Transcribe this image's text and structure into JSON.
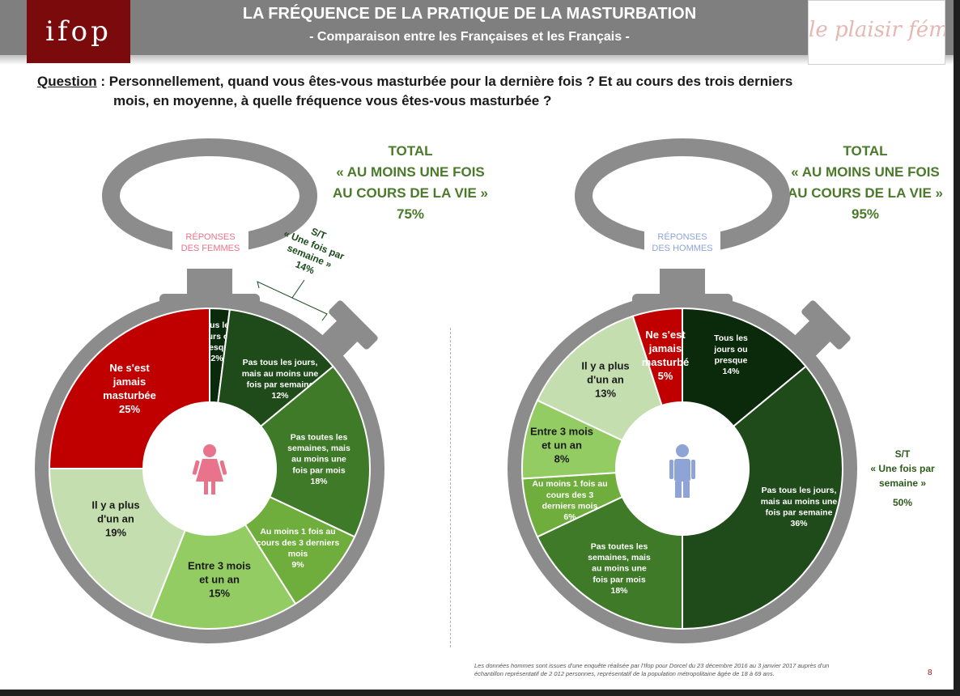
{
  "header": {
    "title": "LA FRÉQUENCE DE LA PRATIQUE DE LA MASTURBATION",
    "subtitle": "- Comparaison entre les Françaises et les Français -",
    "logo_left": "ifop",
    "logo_right": "le plaisir féminin"
  },
  "question": {
    "label": "Question",
    "line1": " : Personnellement, quand vous êtes-vous masturbée pour la dernière fois ? Et au cours des trois derniers",
    "line2": "mois, en moyenne, à quelle fréquence vous êtes-vous masturbée ?"
  },
  "women": {
    "badge_line1": "RÉPONSES",
    "badge_line2": "DES FEMMES",
    "total_line1": "TOTAL",
    "total_line2": "« AU MOINS UNE FOIS",
    "total_line3": "AU COURS DE LA VIE »",
    "total_value": "75%",
    "subtotal_line1": "S/T",
    "subtotal_line2": "« Une fois par",
    "subtotal_line3": "semaine »",
    "subtotal_value": "14%"
  },
  "men": {
    "badge_line1": "RÉPONSES",
    "badge_line2": "DES HOMMES",
    "total_line1": "TOTAL",
    "total_line2": "« AU MOINS UNE FOIS",
    "total_line3": "AU COURS DE LA VIE »",
    "total_value": "95%",
    "subtotal_line1": "S/T",
    "subtotal_line2": "« Une fois par",
    "subtotal_line3": "semaine »",
    "subtotal_value": "50%"
  },
  "chart_data": [
    {
      "type": "pie",
      "title": "RÉPONSES DES FEMMES",
      "slices": [
        {
          "label": "Tous les jours ou presque",
          "value": 2,
          "color": "#0b2a0b"
        },
        {
          "label": "Pas tous les jours, mais au moins une fois par semaine",
          "value": 12,
          "color": "#1f4a1a"
        },
        {
          "label": "Pas toutes les semaines, mais au moins une fois par mois",
          "value": 18,
          "color": "#3e7a28"
        },
        {
          "label": "Au moins 1 fois au cours des 3 derniers mois",
          "value": 9,
          "color": "#6fae3c"
        },
        {
          "label": "Entre 3 mois et un an",
          "value": 15,
          "color": "#92cc62"
        },
        {
          "label": "Il y a plus d'un an",
          "value": 19,
          "color": "#c4deb0"
        },
        {
          "label": "Ne s'est jamais masturbée",
          "value": 25,
          "color": "#c00000"
        }
      ]
    },
    {
      "type": "pie",
      "title": "RÉPONSES DES HOMMES",
      "slices": [
        {
          "label": "Tous les jours ou presque",
          "value": 14,
          "color": "#0b2a0b"
        },
        {
          "label": "Pas tous les jours, mais au moins une fois par semaine",
          "value": 36,
          "color": "#1f4a1a"
        },
        {
          "label": "Pas toutes les semaines, mais au moins une fois par mois",
          "value": 18,
          "color": "#3e7a28"
        },
        {
          "label": "Au moins 1 fois au cours des 3 derniers mois",
          "value": 6,
          "color": "#6fae3c"
        },
        {
          "label": "Entre 3 mois et un an",
          "value": 8,
          "color": "#92cc62"
        },
        {
          "label": "Il y a plus d'un an",
          "value": 13,
          "color": "#c4deb0"
        },
        {
          "label": "Ne s'est jamais masturbé",
          "value": 5,
          "color": "#c00000"
        }
      ]
    }
  ],
  "labels_women": [
    {
      "lines": [
        "Tous les",
        "jours ou",
        "presque",
        "2%"
      ]
    },
    {
      "lines": [
        "Pas tous les jours,",
        "mais au moins une",
        "fois par semaine",
        "12%"
      ]
    },
    {
      "lines": [
        "Pas toutes les",
        "semaines, mais",
        "au moins une",
        "fois par mois",
        "18%"
      ]
    },
    {
      "lines": [
        "Au moins 1 fois au",
        "cours des 3 derniers",
        "mois",
        "9%"
      ]
    },
    {
      "lines": [
        "Entre 3 mois",
        "et un an",
        "15%"
      ]
    },
    {
      "lines": [
        "Il y a plus",
        "d'un an",
        "19%"
      ]
    },
    {
      "lines": [
        "Ne s'est",
        "jamais",
        "masturbée",
        "25%"
      ]
    }
  ],
  "labels_men": [
    {
      "lines": [
        "Tous les",
        "jours ou",
        "presque",
        "14%"
      ]
    },
    {
      "lines": [
        "Pas tous les jours,",
        "mais au moins une",
        "fois par semaine",
        "36%"
      ]
    },
    {
      "lines": [
        "Pas toutes les",
        "semaines, mais",
        "au moins une",
        "fois par mois",
        "18%"
      ]
    },
    {
      "lines": [
        "Au moins 1 fois au",
        "cours des 3",
        "derniers mois",
        "6%"
      ]
    },
    {
      "lines": [
        "Entre 3 mois",
        "et un an",
        "8%"
      ]
    },
    {
      "lines": [
        "Il y a plus",
        "d'un an",
        "13%"
      ]
    },
    {
      "lines": [
        "Ne s'est",
        "jamais",
        "masturbé",
        "5%"
      ]
    }
  ],
  "footnote": {
    "line1": "Les données hommes sont issues d'une enquête réalisée par l'Ifop pour Dorcel du 23 décembre 2016 au 3 janvier 2017 auprès d'un",
    "line2": "échantillon représentatif de 2 012 personnes, représentatif de la population métropolitaine âgée de 18 à 69 ans."
  },
  "page_number": "8",
  "colors": {
    "header_grey": "#7f7f7f",
    "ifop_red": "#7a0a0c",
    "watch_grey": "#8c8c8c",
    "total_green": "#4a7a2a",
    "female_icon": "#e8738b",
    "male_icon": "#8ea4d6"
  }
}
